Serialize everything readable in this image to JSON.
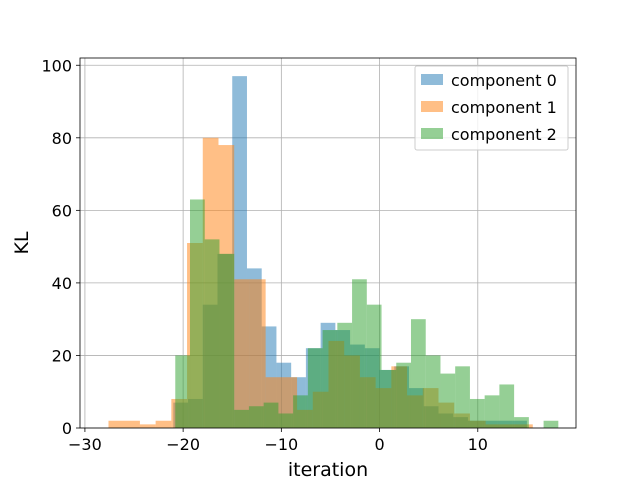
{
  "chart_data": {
    "type": "histogram",
    "xlabel": "iteration",
    "ylabel": "KL",
    "xlim": [
      -30.5,
      20
    ],
    "ylim": [
      0,
      102
    ],
    "xticks": [
      -30,
      -20,
      -10,
      0,
      10
    ],
    "yticks": [
      0,
      20,
      40,
      60,
      80,
      100
    ],
    "grid": true,
    "legend_position": "top-right",
    "bar_alpha": 0.5,
    "series": [
      {
        "name": "component 0",
        "color": "#1f77b4",
        "bins": [
          [
            -21,
            -19.5,
            7
          ],
          [
            -19.5,
            -18,
            8
          ],
          [
            -18,
            -16.5,
            34
          ],
          [
            -16.5,
            -15,
            48
          ],
          [
            -15,
            -13.5,
            97
          ],
          [
            -13.5,
            -12,
            44
          ],
          [
            -12,
            -10.5,
            28
          ],
          [
            -10.5,
            -9,
            18
          ],
          [
            -9,
            -7.5,
            14
          ],
          [
            -7.5,
            -6,
            22
          ],
          [
            -6,
            -4.5,
            29
          ],
          [
            -4.5,
            -3,
            27
          ],
          [
            -3,
            -1.5,
            23
          ],
          [
            -1.5,
            0,
            22
          ],
          [
            0,
            1.5,
            16
          ],
          [
            1.5,
            3,
            17
          ],
          [
            3,
            4.5,
            11
          ],
          [
            4.5,
            6,
            6
          ],
          [
            6,
            7.5,
            4
          ],
          [
            7.5,
            9,
            3
          ],
          [
            9,
            10.5,
            2
          ],
          [
            10.5,
            12,
            2
          ],
          [
            12,
            13.5,
            2
          ],
          [
            13.5,
            15,
            2
          ]
        ]
      },
      {
        "name": "component 1",
        "color": "#ff7f0e",
        "bins": [
          [
            -27.6,
            -24.4,
            2
          ],
          [
            -24.4,
            -22.8,
            1
          ],
          [
            -22.8,
            -21.2,
            2
          ],
          [
            -21.2,
            -19.6,
            8
          ],
          [
            -19.6,
            -18,
            51
          ],
          [
            -18,
            -16.4,
            80
          ],
          [
            -16.4,
            -14.8,
            78
          ],
          [
            -14.8,
            -13.2,
            41
          ],
          [
            -13.2,
            -11.6,
            41
          ],
          [
            -11.6,
            -10,
            14
          ],
          [
            -10,
            -8.4,
            14
          ],
          [
            -8.4,
            -6.8,
            5
          ],
          [
            -6.8,
            -5.2,
            10
          ],
          [
            -5.2,
            -3.6,
            24
          ],
          [
            -3.6,
            -2,
            20
          ],
          [
            -2,
            -0.4,
            14
          ],
          [
            -0.4,
            1.2,
            11
          ],
          [
            1.2,
            2.8,
            17
          ],
          [
            2.8,
            4.4,
            9
          ],
          [
            4.4,
            6,
            11
          ],
          [
            6,
            7.6,
            7
          ],
          [
            7.6,
            9.2,
            4
          ],
          [
            9.2,
            10.8,
            2
          ],
          [
            10.8,
            12.4,
            1
          ],
          [
            12.4,
            14,
            1
          ],
          [
            14,
            15.6,
            1
          ]
        ]
      },
      {
        "name": "component 2",
        "color": "#2ca02c",
        "bins": [
          [
            -20.8,
            -19.3,
            20
          ],
          [
            -19.3,
            -17.8,
            63
          ],
          [
            -17.8,
            -16.3,
            52
          ],
          [
            -16.3,
            -14.8,
            48
          ],
          [
            -14.8,
            -13.3,
            5
          ],
          [
            -13.3,
            -11.8,
            6
          ],
          [
            -11.8,
            -10.3,
            7
          ],
          [
            -10.3,
            -8.8,
            4
          ],
          [
            -8.8,
            -7.3,
            9
          ],
          [
            -7.3,
            -5.8,
            22
          ],
          [
            -5.8,
            -4.3,
            27
          ],
          [
            -4.3,
            -2.8,
            29
          ],
          [
            -2.8,
            -1.3,
            41
          ],
          [
            -1.3,
            0.2,
            34
          ],
          [
            0.2,
            1.7,
            16
          ],
          [
            1.7,
            3.2,
            18
          ],
          [
            3.2,
            4.7,
            30
          ],
          [
            4.7,
            6.2,
            20
          ],
          [
            6.2,
            7.7,
            15
          ],
          [
            7.7,
            9.2,
            17
          ],
          [
            9.2,
            10.7,
            8
          ],
          [
            10.7,
            12.2,
            9
          ],
          [
            12.2,
            13.7,
            12
          ],
          [
            13.7,
            15.2,
            3
          ],
          [
            15.2,
            16.7,
            0
          ],
          [
            16.7,
            18.2,
            2
          ]
        ]
      }
    ]
  }
}
